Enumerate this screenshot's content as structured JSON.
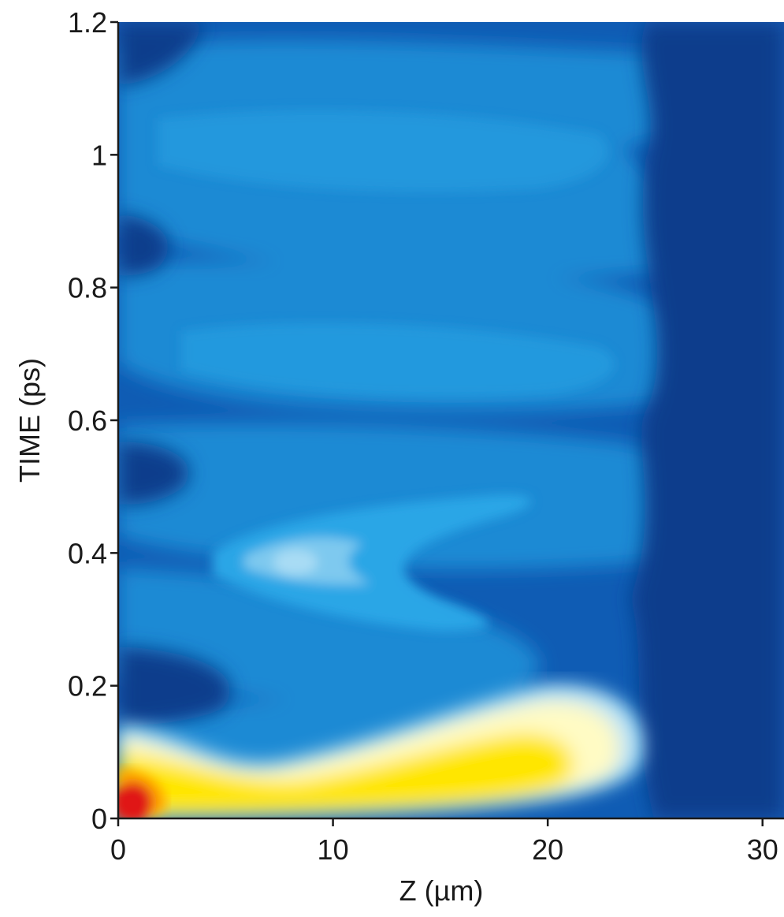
{
  "chart_data": {
    "type": "heatmap",
    "title": "",
    "xlabel": "Z (µm)",
    "ylabel": "TIME (ps)",
    "xlim": [
      0,
      31
    ],
    "ylim": [
      0,
      1.2
    ],
    "x_ticks": [
      {
        "value": 0,
        "label": "0"
      },
      {
        "value": 10,
        "label": "10"
      },
      {
        "value": 20,
        "label": "20"
      },
      {
        "value": 30,
        "label": "30"
      }
    ],
    "y_ticks": [
      {
        "value": 0,
        "label": "0"
      },
      {
        "value": 0.2,
        "label": "0.2"
      },
      {
        "value": 0.4,
        "label": "0.4"
      },
      {
        "value": 0.6,
        "label": "0.6"
      },
      {
        "value": 0.8,
        "label": "0.8"
      },
      {
        "value": 1.0,
        "label": "1"
      },
      {
        "value": 1.2,
        "label": "1.2"
      }
    ],
    "colormap": [
      "#0b3e8c",
      "#0f5cb4",
      "#1a8ad4",
      "#2ba6e6",
      "#7ec9ef",
      "#fffbc4",
      "#ffe600",
      "#e01818"
    ],
    "grid": false,
    "legend": "none",
    "features": [
      {
        "kind": "hot-spot",
        "z": 0.7,
        "t": 0.03,
        "level": 1.0
      },
      {
        "kind": "bright-wedge",
        "z_range": [
          0,
          22
        ],
        "t_range": [
          0,
          0.18
        ],
        "level": 0.8
      },
      {
        "kind": "light-band",
        "z": 8,
        "t": 0.38,
        "level": 0.5
      },
      {
        "kind": "oscillation-band",
        "t": 0.65,
        "level": 0.35
      },
      {
        "kind": "oscillation-band",
        "t": 0.95,
        "level": 0.35
      },
      {
        "kind": "dark-region",
        "z_range": [
          24,
          31
        ],
        "t_range": [
          0,
          1.2
        ],
        "level": 0.05
      }
    ]
  }
}
